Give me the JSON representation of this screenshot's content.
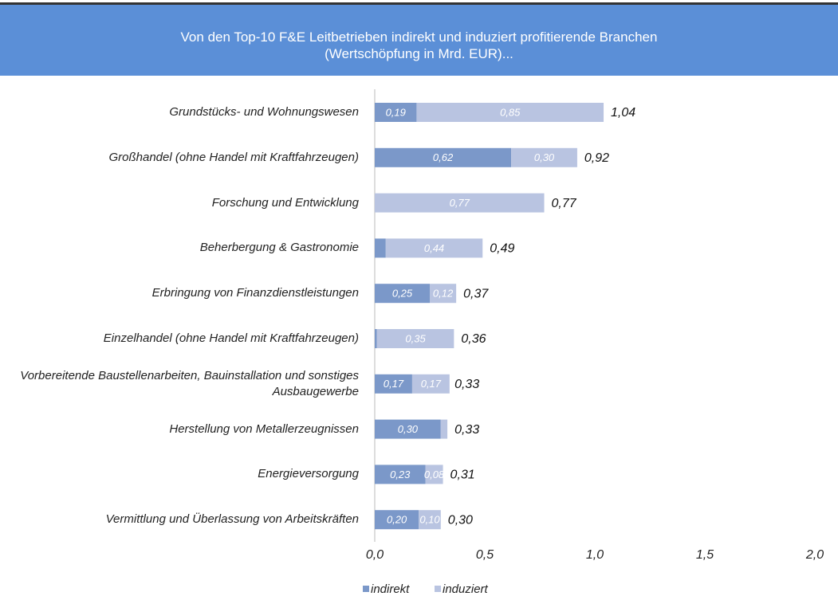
{
  "chart_data": {
    "type": "stacked-barh",
    "title": "Von den Top-10 F&E Leitbetrieben indirekt und induziert profitierende Branchen",
    "subtitle": "(Wertschöpfung in Mrd. EUR)...",
    "categories": [
      "Grundstücks- und Wohnungswesen",
      "Großhandel (ohne Handel mit Kraftfahrzeugen)",
      "Forschung und Entwicklung",
      "Beherbergung & Gastronomie",
      "Erbringung von Finanzdienstleistungen",
      "Einzelhandel (ohne Handel mit Kraftfahrzeugen)",
      "Vorbereitende Baustellenarbeiten, Bauinstallation und sonstiges Ausbaugewerbe",
      "Herstellung von Metallerzeugnissen",
      "Energieversorgung",
      "Vermittlung und Überlassung von Arbeitskräften"
    ],
    "series": [
      {
        "name": "indirekt",
        "color": "#7b98c9",
        "values": [
          0.19,
          0.62,
          0,
          0.05,
          0.25,
          0.01,
          0.17,
          0.3,
          0.23,
          0.2
        ],
        "value_labels": [
          "0,19",
          "0,62",
          null,
          null,
          "0,25",
          null,
          "0,17",
          "0,30",
          "0,23",
          "0,20"
        ]
      },
      {
        "name": "induziert",
        "color": "#b9c4e1",
        "values": [
          0.85,
          0.3,
          0.77,
          0.44,
          0.12,
          0.35,
          0.17,
          0.03,
          0.08,
          0.1
        ],
        "value_labels": [
          "0,85",
          "0,30",
          "0,77",
          "0,44",
          "0,12",
          "0,35",
          "0,17",
          null,
          "0,08",
          "0,10"
        ]
      }
    ],
    "totals": [
      1.04,
      0.92,
      0.77,
      0.49,
      0.37,
      0.36,
      0.33,
      0.33,
      0.31,
      0.3
    ],
    "total_labels": [
      "1,04",
      "0,92",
      "0,77",
      "0,49",
      "0,37",
      "0,36",
      "0,33",
      "0,33",
      "0,31",
      "0,30"
    ],
    "xlim": [
      0,
      2
    ],
    "xticks": [
      {
        "value": 0,
        "label": "0,0"
      },
      {
        "value": 0.5,
        "label": "0,5"
      },
      {
        "value": 1,
        "label": "1,0"
      },
      {
        "value": 1.5,
        "label": "1,5"
      },
      {
        "value": 2,
        "label": "2,0"
      }
    ]
  }
}
